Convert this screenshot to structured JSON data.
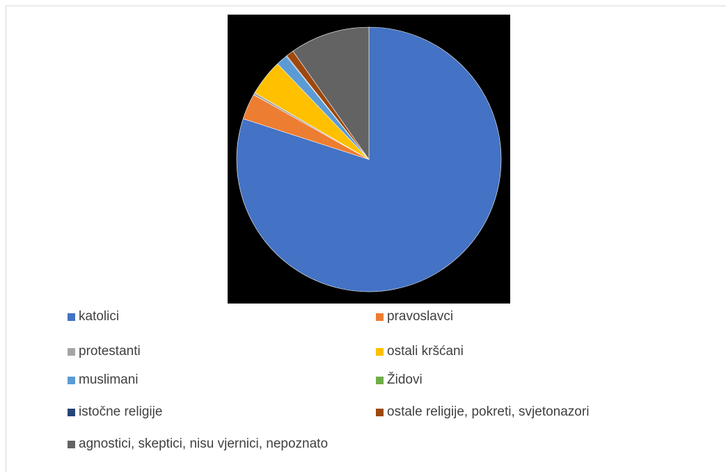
{
  "chart_data": {
    "type": "pie",
    "title": "",
    "legend_position": "bottom",
    "series": [
      {
        "label": "katolici",
        "value": 86.3,
        "color": "#4472C4"
      },
      {
        "label": "pravoslavci",
        "value": 3.4,
        "color": "#ED7D31"
      },
      {
        "label": "protestanti",
        "value": 0.3,
        "color": "#A5A5A5"
      },
      {
        "label": "ostali kršćani",
        "value": 4.8,
        "color": "#FFC000"
      },
      {
        "label": "muslimani",
        "value": 1.5,
        "color": "#5B9BD5"
      },
      {
        "label": "Židovi",
        "value": 0.0,
        "color": "#70AD47"
      },
      {
        "label": "istočne religije",
        "value": 0.1,
        "color": "#264478"
      },
      {
        "label": "ostale religije, pokreti, svjetonazori",
        "value": 1.0,
        "color": "#9E480E"
      },
      {
        "label": "agnostici, skeptici, nisu vjernici, nepoznato",
        "value": 10.5,
        "color": "#636363"
      }
    ]
  }
}
